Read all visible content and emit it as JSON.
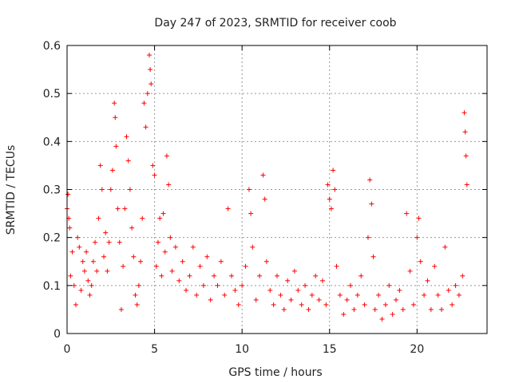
{
  "chart_data": {
    "type": "scatter",
    "title": "Day 247 of 2023, SRMTID for receiver coob",
    "xlabel": "GPS time / hours",
    "ylabel": "SRMTID / TECUs",
    "xlim": [
      0,
      24
    ],
    "ylim": [
      0,
      0.6
    ],
    "xticks": [
      0,
      5,
      10,
      15,
      20
    ],
    "yticks": [
      0,
      0.1,
      0.2,
      0.3,
      0.4,
      0.5,
      0.6
    ],
    "xtick_labels": [
      "0",
      "5",
      "10",
      "15",
      "20"
    ],
    "ytick_labels": [
      "0",
      "0.1",
      "0.2",
      "0.3",
      "0.4",
      "0.5",
      "0.6"
    ],
    "grid": true,
    "marker": "+",
    "color": "#ff0000",
    "series": [
      {
        "name": "SRMTID",
        "points": [
          [
            0.0,
            0.26
          ],
          [
            0.05,
            0.29
          ],
          [
            0.1,
            0.24
          ],
          [
            0.15,
            0.22
          ],
          [
            0.2,
            0.12
          ],
          [
            0.3,
            0.17
          ],
          [
            0.4,
            0.1
          ],
          [
            0.5,
            0.06
          ],
          [
            0.6,
            0.2
          ],
          [
            0.7,
            0.18
          ],
          [
            0.8,
            0.09
          ],
          [
            0.9,
            0.15
          ],
          [
            1.0,
            0.13
          ],
          [
            1.1,
            0.17
          ],
          [
            1.2,
            0.11
          ],
          [
            1.3,
            0.08
          ],
          [
            1.4,
            0.1
          ],
          [
            1.5,
            0.15
          ],
          [
            1.6,
            0.19
          ],
          [
            1.7,
            0.13
          ],
          [
            1.8,
            0.24
          ],
          [
            1.9,
            0.35
          ],
          [
            2.0,
            0.3
          ],
          [
            2.1,
            0.16
          ],
          [
            2.2,
            0.21
          ],
          [
            2.3,
            0.13
          ],
          [
            2.4,
            0.19
          ],
          [
            2.5,
            0.3
          ],
          [
            2.6,
            0.34
          ],
          [
            2.7,
            0.48
          ],
          [
            2.75,
            0.45
          ],
          [
            2.8,
            0.39
          ],
          [
            2.9,
            0.26
          ],
          [
            3.0,
            0.19
          ],
          [
            3.1,
            0.05
          ],
          [
            3.2,
            0.14
          ],
          [
            3.3,
            0.26
          ],
          [
            3.4,
            0.41
          ],
          [
            3.5,
            0.36
          ],
          [
            3.6,
            0.3
          ],
          [
            3.7,
            0.22
          ],
          [
            3.8,
            0.16
          ],
          [
            3.9,
            0.08
          ],
          [
            4.0,
            0.06
          ],
          [
            4.1,
            0.1
          ],
          [
            4.2,
            0.15
          ],
          [
            4.3,
            0.24
          ],
          [
            4.4,
            0.48
          ],
          [
            4.5,
            0.43
          ],
          [
            4.6,
            0.5
          ],
          [
            4.7,
            0.58
          ],
          [
            4.75,
            0.55
          ],
          [
            4.8,
            0.52
          ],
          [
            4.9,
            0.35
          ],
          [
            5.0,
            0.33
          ],
          [
            5.1,
            0.14
          ],
          [
            5.2,
            0.19
          ],
          [
            5.3,
            0.24
          ],
          [
            5.4,
            0.12
          ],
          [
            5.5,
            0.25
          ],
          [
            5.6,
            0.17
          ],
          [
            5.7,
            0.37
          ],
          [
            5.8,
            0.31
          ],
          [
            5.9,
            0.2
          ],
          [
            6.0,
            0.13
          ],
          [
            6.2,
            0.18
          ],
          [
            6.4,
            0.11
          ],
          [
            6.6,
            0.15
          ],
          [
            6.8,
            0.09
          ],
          [
            7.0,
            0.12
          ],
          [
            7.2,
            0.18
          ],
          [
            7.4,
            0.08
          ],
          [
            7.6,
            0.14
          ],
          [
            7.8,
            0.1
          ],
          [
            8.0,
            0.16
          ],
          [
            8.2,
            0.07
          ],
          [
            8.4,
            0.12
          ],
          [
            8.6,
            0.1
          ],
          [
            8.8,
            0.15
          ],
          [
            9.0,
            0.08
          ],
          [
            9.2,
            0.26
          ],
          [
            9.4,
            0.12
          ],
          [
            9.6,
            0.09
          ],
          [
            9.8,
            0.06
          ],
          [
            10.0,
            0.1
          ],
          [
            10.2,
            0.14
          ],
          [
            10.4,
            0.3
          ],
          [
            10.5,
            0.25
          ],
          [
            10.6,
            0.18
          ],
          [
            10.8,
            0.07
          ],
          [
            11.0,
            0.12
          ],
          [
            11.2,
            0.33
          ],
          [
            11.3,
            0.28
          ],
          [
            11.4,
            0.15
          ],
          [
            11.6,
            0.09
          ],
          [
            11.8,
            0.06
          ],
          [
            12.0,
            0.12
          ],
          [
            12.2,
            0.08
          ],
          [
            12.4,
            0.05
          ],
          [
            12.6,
            0.11
          ],
          [
            12.8,
            0.07
          ],
          [
            13.0,
            0.13
          ],
          [
            13.2,
            0.09
          ],
          [
            13.4,
            0.06
          ],
          [
            13.6,
            0.1
          ],
          [
            13.8,
            0.05
          ],
          [
            14.0,
            0.08
          ],
          [
            14.2,
            0.12
          ],
          [
            14.4,
            0.07
          ],
          [
            14.6,
            0.11
          ],
          [
            14.8,
            0.06
          ],
          [
            14.9,
            0.31
          ],
          [
            15.0,
            0.28
          ],
          [
            15.1,
            0.26
          ],
          [
            15.2,
            0.34
          ],
          [
            15.3,
            0.3
          ],
          [
            15.4,
            0.14
          ],
          [
            15.6,
            0.08
          ],
          [
            15.8,
            0.04
          ],
          [
            16.0,
            0.07
          ],
          [
            16.2,
            0.1
          ],
          [
            16.4,
            0.05
          ],
          [
            16.6,
            0.08
          ],
          [
            16.8,
            0.12
          ],
          [
            17.0,
            0.06
          ],
          [
            17.2,
            0.2
          ],
          [
            17.3,
            0.32
          ],
          [
            17.4,
            0.27
          ],
          [
            17.5,
            0.16
          ],
          [
            17.6,
            0.05
          ],
          [
            17.8,
            0.08
          ],
          [
            18.0,
            0.03
          ],
          [
            18.2,
            0.06
          ],
          [
            18.4,
            0.1
          ],
          [
            18.6,
            0.04
          ],
          [
            18.8,
            0.07
          ],
          [
            19.0,
            0.09
          ],
          [
            19.2,
            0.05
          ],
          [
            19.4,
            0.25
          ],
          [
            19.6,
            0.13
          ],
          [
            19.8,
            0.06
          ],
          [
            20.0,
            0.2
          ],
          [
            20.1,
            0.24
          ],
          [
            20.2,
            0.15
          ],
          [
            20.4,
            0.08
          ],
          [
            20.6,
            0.11
          ],
          [
            20.8,
            0.05
          ],
          [
            21.0,
            0.14
          ],
          [
            21.2,
            0.08
          ],
          [
            21.4,
            0.05
          ],
          [
            21.6,
            0.18
          ],
          [
            21.8,
            0.09
          ],
          [
            22.0,
            0.06
          ],
          [
            22.2,
            0.1
          ],
          [
            22.4,
            0.08
          ],
          [
            22.6,
            0.12
          ],
          [
            22.7,
            0.46
          ],
          [
            22.75,
            0.42
          ],
          [
            22.8,
            0.37
          ],
          [
            22.85,
            0.31
          ]
        ]
      }
    ]
  }
}
